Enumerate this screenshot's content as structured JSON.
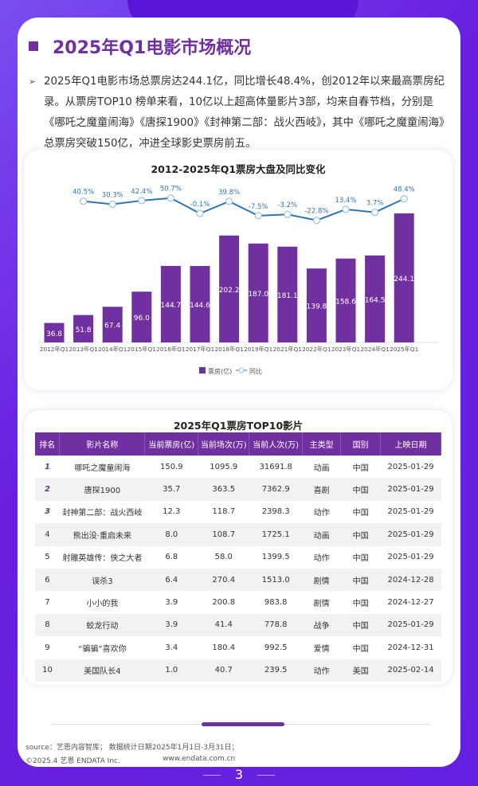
{
  "heading": "2025年Q1电影市场概况",
  "intro": "2025年Q1电影市场总票房达244.1亿，同比增长48.4%，创2012年以来最高票房纪录。从票房TOP10 榜单来看，10亿以上超高体量影片3部，均来自春节档，分别是《哪吒之魔童闹海》《唐探1900》《封神第二部：战火西岐》，其中《哪吒之魔童闹海》总票房突破150亿，冲进全球影史票房前五。",
  "chart_data": {
    "type": "bar",
    "title": "2012-2025年Q1票房大盘及同比变化",
    "categories": [
      "2012年Q1",
      "2013年Q1",
      "2014年Q1",
      "2015年Q1",
      "2016年Q1",
      "2017年Q1",
      "2018年Q1",
      "2019年Q1",
      "2021年Q1",
      "2022年Q1",
      "2023年Q1",
      "2024年Q1",
      "2025年Q1"
    ],
    "series": [
      {
        "name": "票房(亿)",
        "type": "bar",
        "values": [
          36.8,
          51.8,
          67.4,
          96.0,
          144.7,
          144.6,
          202.2,
          187.0,
          181.1,
          139.8,
          158.6,
          164.5,
          244.1
        ],
        "color": "#7030a0"
      },
      {
        "name": "同比",
        "type": "line",
        "values": [
          null,
          40.5,
          30.3,
          42.4,
          50.7,
          -0.1,
          39.8,
          -7.5,
          -3.2,
          -22.8,
          13.4,
          3.7,
          48.4
        ],
        "labels": [
          "",
          "40.5%",
          "30.3%",
          "42.4%",
          "50.7%",
          "-0.1%",
          "39.8%",
          "-7.5%",
          "-3.2%",
          "-22.8%",
          "13.4%",
          "3.7%",
          "48.4%"
        ],
        "color": "#2e75b6"
      }
    ],
    "legend": [
      "票房(亿)",
      "同比"
    ],
    "legend_position": "bottom"
  },
  "table": {
    "title": "2025年Q1票房TOP10影片",
    "headers": [
      "排名",
      "影片名称",
      "当前票房(亿)",
      "当前场次(万)",
      "当前人次(万)",
      "主类型",
      "国别",
      "上映日期"
    ],
    "rows": [
      [
        "1",
        "哪吒之魔童闹海",
        "150.9",
        "1095.9",
        "31691.8",
        "动画",
        "中国",
        "2025-01-29"
      ],
      [
        "2",
        "唐探1900",
        "35.7",
        "363.5",
        "7362.9",
        "喜剧",
        "中国",
        "2025-01-29"
      ],
      [
        "3",
        "封神第二部：战火西岐",
        "12.3",
        "118.7",
        "2398.3",
        "动作",
        "中国",
        "2025-01-29"
      ],
      [
        "4",
        "熊出没·重启未来",
        "8.0",
        "108.7",
        "1725.1",
        "动画",
        "中国",
        "2025-01-29"
      ],
      [
        "5",
        "射雕英雄传：侠之大者",
        "6.8",
        "58.0",
        "1399.5",
        "动作",
        "中国",
        "2025-01-29"
      ],
      [
        "6",
        "误杀3",
        "6.4",
        "270.4",
        "1513.0",
        "剧情",
        "中国",
        "2024-12-28"
      ],
      [
        "7",
        "小小的我",
        "3.9",
        "200.8",
        "983.8",
        "剧情",
        "中国",
        "2024-12-27"
      ],
      [
        "8",
        "蛟龙行动",
        "3.9",
        "41.4",
        "778.8",
        "战争",
        "中国",
        "2025-01-29"
      ],
      [
        "9",
        "“骗骗”喜欢你",
        "3.4",
        "180.4",
        "992.5",
        "爱情",
        "中国",
        "2024-12-31"
      ],
      [
        "10",
        "美国队长4",
        "1.0",
        "40.7",
        "239.5",
        "动作",
        "美国",
        "2025-02-14"
      ]
    ]
  },
  "footer": {
    "source": "source：艺恩内容智库； 数据统计日期2025年1月1日-3月31日；",
    "copyright": "©2025.4 艺恩 ENDATA Inc.",
    "url": "www.endata.com.cn",
    "page": "3"
  }
}
